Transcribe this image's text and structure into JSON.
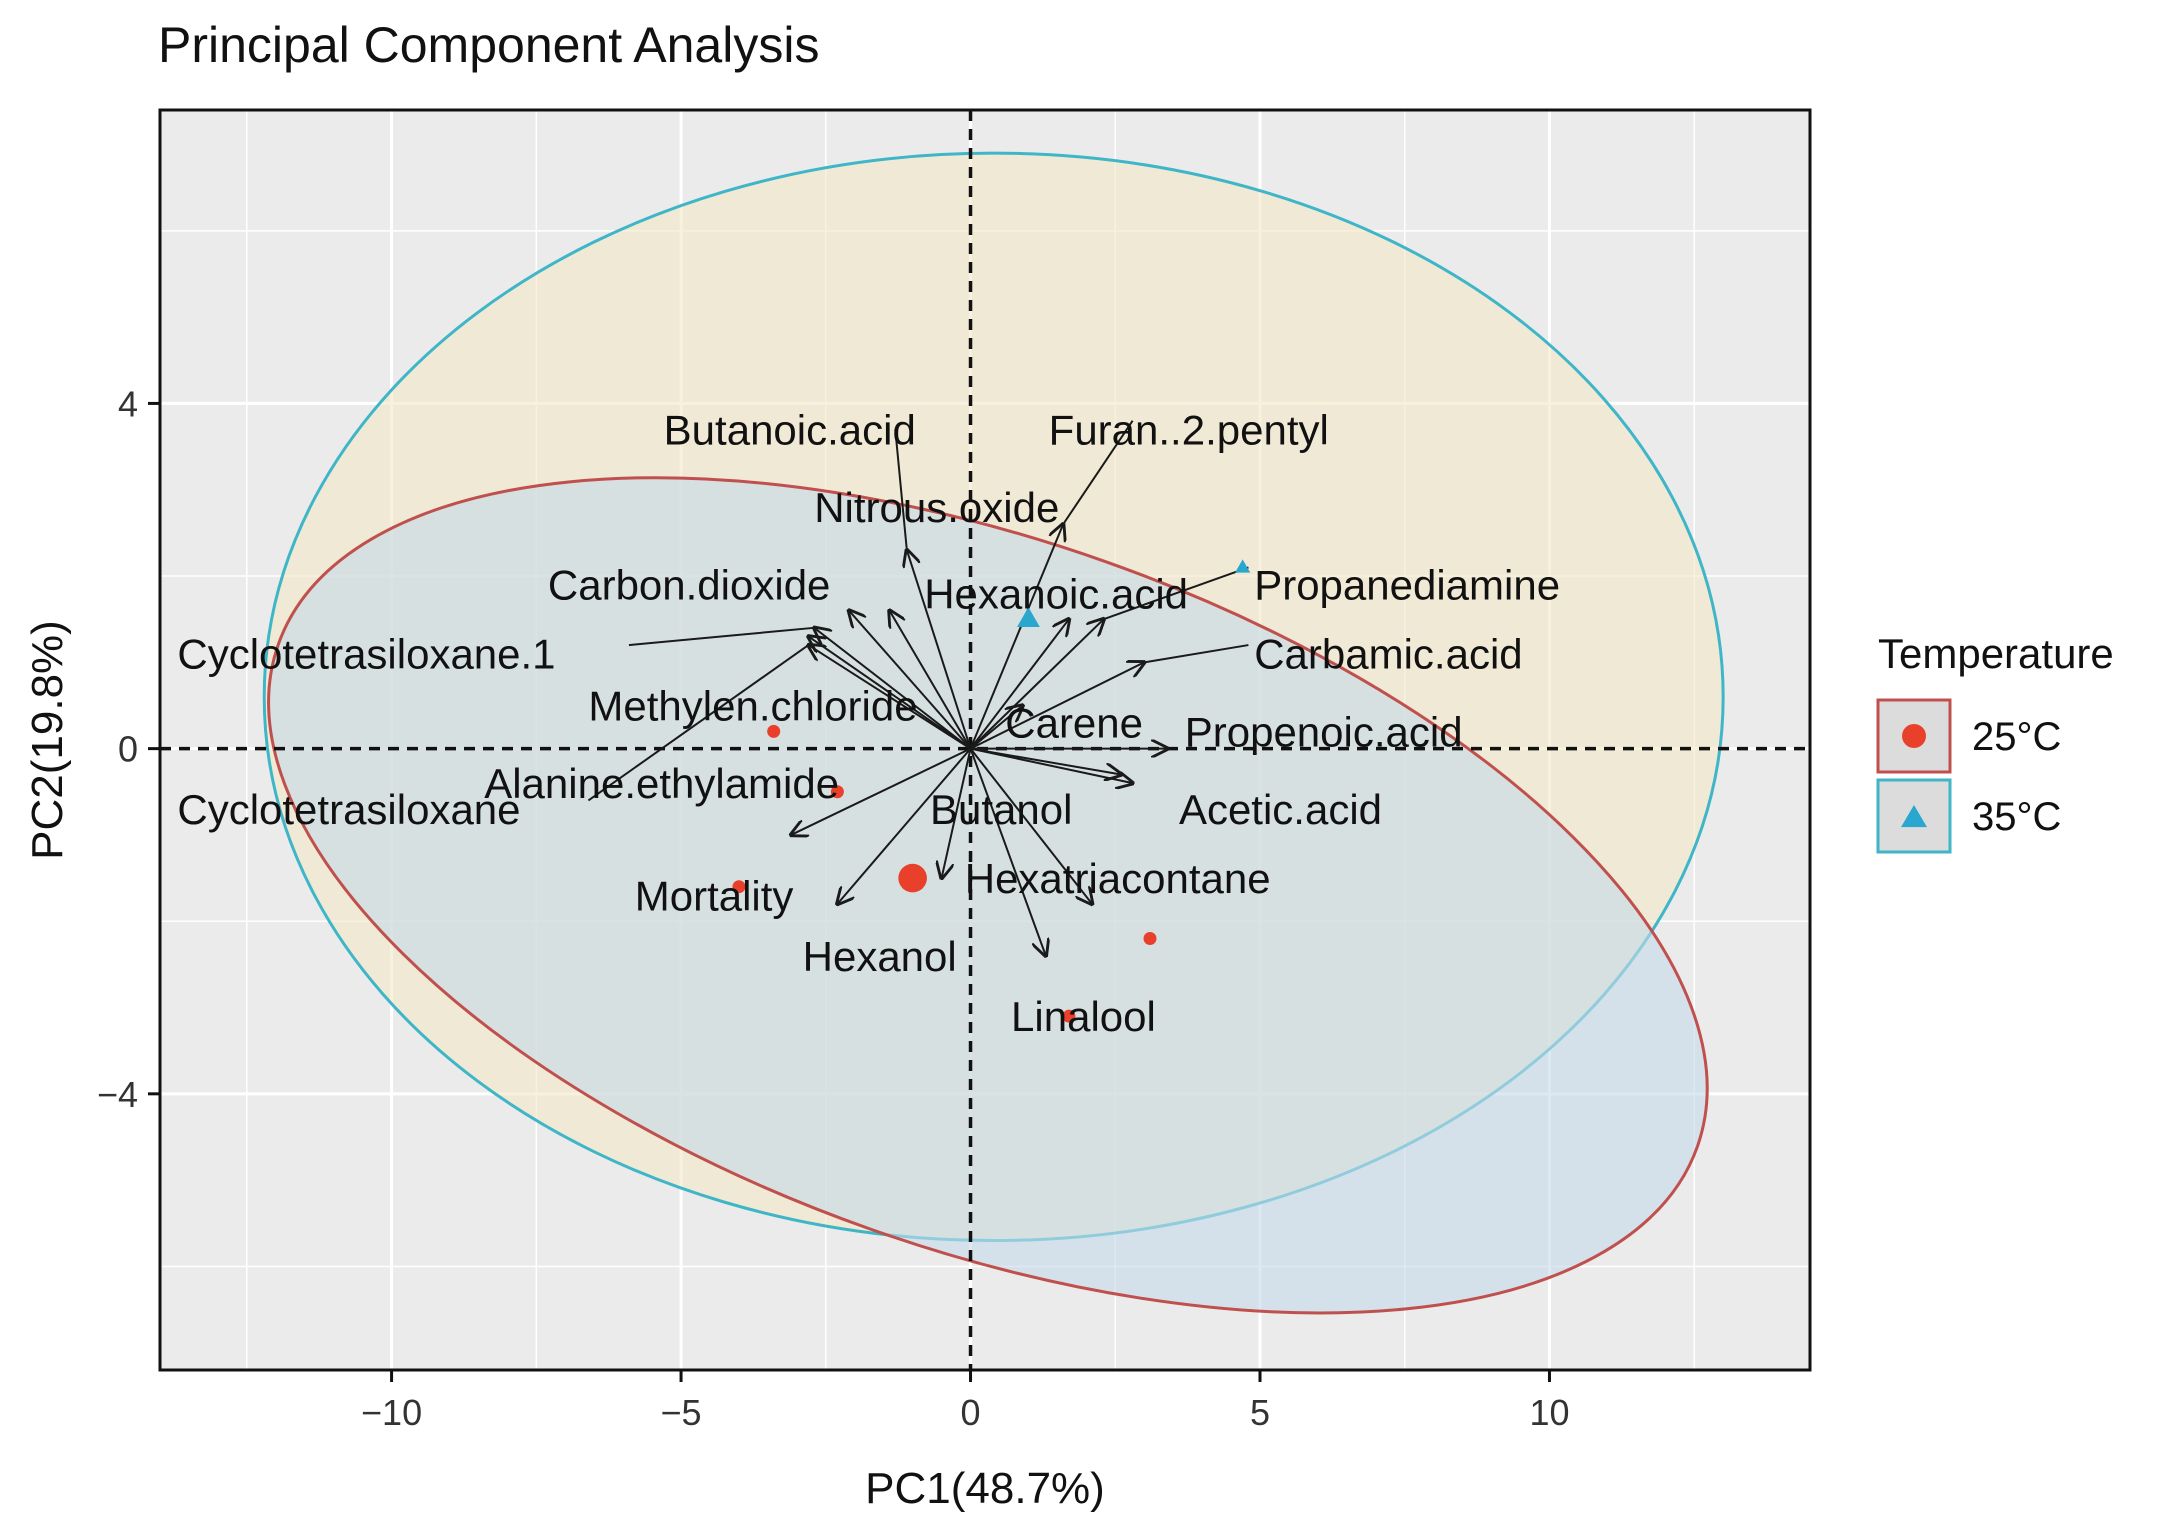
{
  "chart_data": {
    "type": "scatter",
    "title": "Principal Component Analysis",
    "xlabel": "PC1(48.7%)",
    "ylabel": "PC2(19.8%)",
    "xlim": [
      -14,
      14.5
    ],
    "ylim": [
      -7.2,
      7.4
    ],
    "xticks": [
      -10,
      -5,
      0,
      5,
      10
    ],
    "xtick_labels": [
      "−10",
      "−5",
      "0",
      "5",
      "10"
    ],
    "yticks": [
      -4,
      0,
      4
    ],
    "ytick_labels": [
      "−4",
      "0",
      "4"
    ],
    "grid": true,
    "reference_lines": {
      "x": 0,
      "y": 0,
      "style": "dashed"
    },
    "legend": {
      "title": "Temperature",
      "position": "right",
      "entries": [
        {
          "label": "25°C",
          "color": "#e8402a",
          "marker": "circle"
        },
        {
          "label": "35°C",
          "color": "#2aa7cf",
          "marker": "triangle"
        }
      ]
    },
    "colors": {
      "panel": "#ebebeb",
      "grid": "#ffffff",
      "arrow": "#1a1a1a"
    },
    "ellipses": [
      {
        "group": "35°C",
        "center": [
          0.4,
          0.6
        ],
        "semi_axes": [
          12.6,
          6.3
        ],
        "angle_deg": 0,
        "fill": "#f3e7c6",
        "stroke": "#3fb6c8"
      },
      {
        "group": "25°C",
        "center": [
          0.3,
          -1.7
        ],
        "semi_axes": [
          13.0,
          4.1
        ],
        "angle_deg": -19.5,
        "fill": "#c6dbea",
        "stroke": "#c0504d"
      }
    ],
    "series": [
      {
        "name": "25°C",
        "points": [
          [
            -3.4,
            0.2
          ],
          [
            -2.3,
            -0.5
          ],
          [
            -1.0,
            -1.5
          ],
          [
            3.1,
            -2.2
          ],
          [
            1.7,
            -3.1
          ],
          [
            -4.0,
            -1.6
          ]
        ],
        "sizes": [
          1,
          1,
          2.2,
          1,
          1,
          1
        ]
      },
      {
        "name": "35°C",
        "points": [
          [
            1.0,
            1.5
          ],
          [
            4.7,
            2.1
          ]
        ],
        "sizes": [
          1.5,
          1
        ]
      }
    ],
    "loadings": [
      {
        "label": "Butanoic.acid",
        "end": [
          -1.1,
          2.3
        ],
        "label_pos": [
          -5.3,
          3.7
        ],
        "guide": [
          -1.3,
          3.7
        ]
      },
      {
        "label": "Furan..2.pentyl",
        "end": [
          1.6,
          2.6
        ],
        "label_pos": [
          1.35,
          3.7
        ],
        "guide": [
          2.8,
          3.8
        ]
      },
      {
        "label": "Nitrous.oxide",
        "end": [
          -1.4,
          1.6
        ],
        "label_pos": [
          -2.7,
          2.8
        ],
        "guide": null
      },
      {
        "label": "Carbon.dioxide",
        "end": [
          -2.1,
          1.6
        ],
        "label_pos": [
          -7.3,
          1.9
        ],
        "guide": null
      },
      {
        "label": "Hexanoic.acid",
        "end": [
          1.7,
          1.5
        ],
        "label_pos": [
          -0.8,
          1.8
        ],
        "guide": null
      },
      {
        "label": "Propanediamine",
        "end": [
          2.3,
          1.5
        ],
        "label_pos": [
          4.9,
          1.9
        ],
        "guide": [
          4.8,
          2.1
        ]
      },
      {
        "label": "Cyclotetrasiloxane.1",
        "end": [
          -2.7,
          1.4
        ],
        "label_pos": [
          -13.7,
          1.1
        ],
        "guide": [
          -5.9,
          1.2
        ]
      },
      {
        "label": "Carbamic.acid",
        "end": [
          3.0,
          1.0
        ],
        "label_pos": [
          4.9,
          1.1
        ],
        "guide": [
          4.8,
          1.2
        ]
      },
      {
        "label": "Methylen.chloride",
        "end": [
          -2.8,
          1.3
        ],
        "label_pos": [
          -6.6,
          0.5
        ],
        "guide": null
      },
      {
        "label": "Carene",
        "end": [
          0.9,
          0.5
        ],
        "label_pos": [
          0.6,
          0.3
        ],
        "guide": null
      },
      {
        "label": "Propenoic.acid",
        "end": [
          3.4,
          0.0
        ],
        "label_pos": [
          3.7,
          0.2
        ],
        "guide": null
      },
      {
        "label": "Cyclotetrasiloxane",
        "end": [
          -2.8,
          1.2
        ],
        "label_pos": [
          -13.7,
          -0.7
        ],
        "guide": [
          -6.6,
          -0.6
        ]
      },
      {
        "label": "Alanine.ethylamide",
        "end": [
          -3.1,
          -1.0
        ],
        "label_pos": [
          -8.4,
          -0.4
        ],
        "guide": null
      },
      {
        "label": "Butanol",
        "end": [
          2.6,
          -0.3
        ],
        "label_pos": [
          -0.7,
          -0.7
        ],
        "guide": null
      },
      {
        "label": "Acetic.acid",
        "end": [
          2.8,
          -0.4
        ],
        "label_pos": [
          3.6,
          -0.7
        ],
        "guide": null
      },
      {
        "label": "Mortality",
        "end": [
          -2.3,
          -1.8
        ],
        "label_pos": [
          -5.8,
          -1.7
        ],
        "guide": null
      },
      {
        "label": "Hexatriacontane",
        "end": [
          2.1,
          -1.8
        ],
        "label_pos": [
          -0.1,
          -1.5
        ],
        "guide": null
      },
      {
        "label": "Hexanol",
        "end": [
          -0.5,
          -1.5
        ],
        "label_pos": [
          -2.9,
          -2.4
        ],
        "guide": null
      },
      {
        "label": "Linalool",
        "end": [
          1.3,
          -2.4
        ],
        "label_pos": [
          0.7,
          -3.1
        ],
        "guide": null
      }
    ]
  }
}
